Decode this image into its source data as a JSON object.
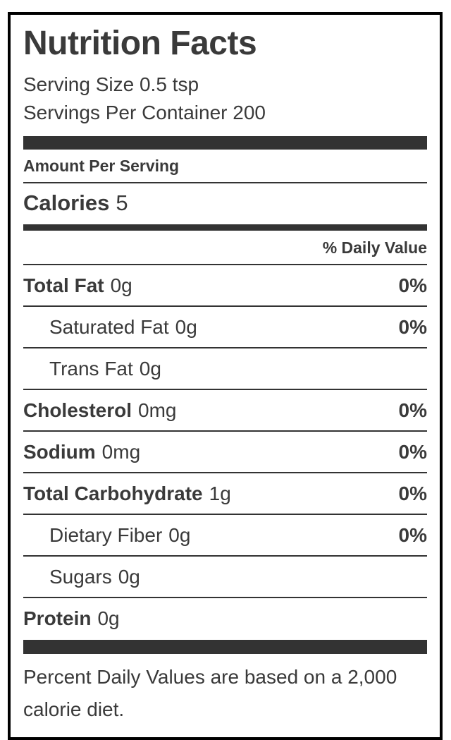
{
  "label": {
    "title": "Nutrition Facts",
    "serving_size": "Serving Size 0.5 tsp",
    "servings_per_container": "Servings Per Container 200",
    "amount_per_serving": "Amount Per Serving",
    "calories_label": "Calories",
    "calories_value": "5",
    "daily_value_header": "% Daily Value",
    "rows": [
      {
        "name": "Total Fat",
        "amount": "0g",
        "dv": "0%"
      },
      {
        "name": "Saturated Fat",
        "amount": "0g",
        "dv": "0%"
      },
      {
        "name": "Trans Fat",
        "amount": "0g",
        "dv": ""
      },
      {
        "name": "Cholesterol",
        "amount": "0mg",
        "dv": "0%"
      },
      {
        "name": "Sodium",
        "amount": "0mg",
        "dv": "0%"
      },
      {
        "name": "Total Carbohydrate",
        "amount": "1g",
        "dv": "0%"
      },
      {
        "name": "Dietary Fiber",
        "amount": "0g",
        "dv": "0%"
      },
      {
        "name": "Sugars",
        "amount": "0g",
        "dv": ""
      },
      {
        "name": "Protein",
        "amount": "0g",
        "dv": ""
      }
    ],
    "footnote": "Percent Daily Values are based on a 2,000 calorie diet.",
    "colors": {
      "text": "#3a3a3a",
      "bar": "#333333",
      "border": "#000000",
      "background": "#ffffff"
    }
  }
}
